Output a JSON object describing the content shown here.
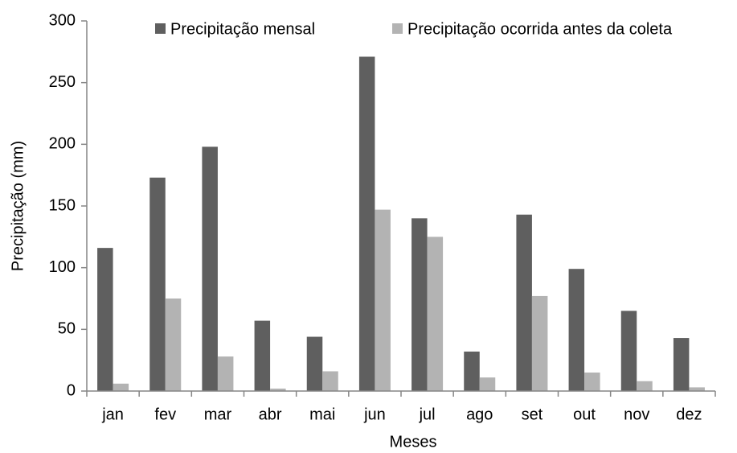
{
  "chart_data": {
    "type": "bar",
    "x_label": "Meses",
    "y_label": "Precipitação (mm)",
    "categories": [
      "jan",
      "fev",
      "mar",
      "abr",
      "mai",
      "jun",
      "jul",
      "ago",
      "set",
      "out",
      "nov",
      "dez"
    ],
    "series": [
      {
        "name": "Precipitação mensal",
        "color": "#5f5f5f",
        "values": [
          116,
          173,
          198,
          57,
          44,
          271,
          140,
          32,
          143,
          99,
          65,
          43
        ]
      },
      {
        "name": "Precipitação ocorrida antes da coleta",
        "color": "#b3b3b3",
        "values": [
          6,
          75,
          28,
          2,
          16,
          147,
          125,
          11,
          77,
          15,
          8,
          3
        ]
      }
    ],
    "ylim": [
      0,
      300
    ],
    "yticks": [
      0,
      50,
      100,
      150,
      200,
      250,
      300
    ],
    "grid": false,
    "legend": "top"
  }
}
